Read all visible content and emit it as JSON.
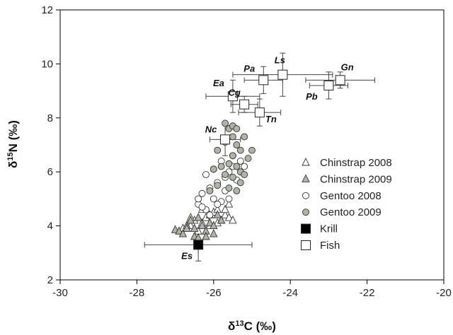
{
  "chart_data": {
    "type": "scatter",
    "xlabel": {
      "prefix": "δ",
      "sup": "13",
      "suffix": "C (‰)"
    },
    "ylabel": {
      "prefix": "δ",
      "sup": "15",
      "suffix": "N (‰)"
    },
    "xlim": [
      -30,
      -20
    ],
    "ylim": [
      2,
      12
    ],
    "xticks": [
      -30,
      -28,
      -26,
      -24,
      -22,
      -20
    ],
    "yticks": [
      2,
      4,
      6,
      8,
      10,
      12
    ],
    "grid": false,
    "legend_position": "right",
    "series": [
      {
        "name": "Chinstrap 2008",
        "marker": "triangle",
        "fill": "#ffffff",
        "points": [
          [
            -26.8,
            3.9
          ],
          [
            -26.6,
            4.0
          ],
          [
            -26.5,
            4.2
          ],
          [
            -26.4,
            3.8
          ],
          [
            -26.3,
            4.1
          ],
          [
            -26.2,
            4.3
          ],
          [
            -26.1,
            4.0
          ],
          [
            -26.0,
            4.5
          ],
          [
            -25.9,
            4.1
          ],
          [
            -25.8,
            4.2
          ],
          [
            -25.7,
            4.4
          ],
          [
            -25.6,
            4.3
          ],
          [
            -25.5,
            4.2
          ],
          [
            -25.7,
            4.6
          ],
          [
            -25.6,
            4.8
          ],
          [
            -26.1,
            4.4
          ],
          [
            -26.3,
            4.6
          ],
          [
            -25.9,
            4.6
          ],
          [
            -26.6,
            4.3
          ]
        ]
      },
      {
        "name": "Chinstrap 2009",
        "marker": "triangle",
        "fill": "#aeb5a4",
        "points": [
          [
            -27.0,
            3.85
          ],
          [
            -26.9,
            3.8
          ],
          [
            -26.8,
            3.7
          ],
          [
            -26.7,
            4.0
          ],
          [
            -26.7,
            3.9
          ],
          [
            -26.6,
            4.2
          ],
          [
            -26.5,
            3.9
          ],
          [
            -26.4,
            4.3
          ],
          [
            -26.3,
            4.0
          ],
          [
            -26.2,
            3.8
          ],
          [
            -26.1,
            4.1
          ],
          [
            -26.0,
            4.0
          ],
          [
            -25.9,
            4.4
          ],
          [
            -25.8,
            4.2
          ],
          [
            -26.5,
            3.6
          ],
          [
            -26.2,
            3.6
          ],
          [
            -26.0,
            3.7
          ],
          [
            -26.4,
            3.55
          ]
        ]
      },
      {
        "name": "Gentoo 2008",
        "marker": "circle",
        "fill": "#ffffff",
        "points": [
          [
            -26.4,
            4.8
          ],
          [
            -26.3,
            5.2
          ],
          [
            -26.2,
            4.6
          ],
          [
            -26.1,
            5.4
          ],
          [
            -26.0,
            5.0
          ],
          [
            -25.9,
            5.6
          ],
          [
            -25.8,
            4.9
          ],
          [
            -25.7,
            5.8
          ],
          [
            -25.6,
            6.0
          ],
          [
            -25.5,
            6.2
          ],
          [
            -25.4,
            5.7
          ],
          [
            -25.3,
            6.4
          ],
          [
            -25.2,
            6.2
          ],
          [
            -26.0,
            6.1
          ],
          [
            -25.8,
            6.4
          ],
          [
            -26.2,
            5.9
          ],
          [
            -26.4,
            5.0
          ],
          [
            -26.3,
            4.7
          ],
          [
            -25.9,
            4.8
          ],
          [
            -25.7,
            5.3
          ],
          [
            -26.1,
            4.4
          ],
          [
            -25.5,
            6.6
          ],
          [
            -25.6,
            5.0
          ]
        ]
      },
      {
        "name": "Gentoo 2009",
        "marker": "circle",
        "fill": "#aeb5a4",
        "points": [
          [
            -25.7,
            7.8
          ],
          [
            -25.6,
            7.6
          ],
          [
            -25.5,
            7.3
          ],
          [
            -25.4,
            7.0
          ],
          [
            -25.3,
            6.8
          ],
          [
            -25.5,
            6.6
          ],
          [
            -25.6,
            6.3
          ],
          [
            -25.4,
            6.2
          ],
          [
            -25.5,
            5.8
          ],
          [
            -25.3,
            5.6
          ],
          [
            -25.7,
            5.9
          ],
          [
            -25.9,
            5.5
          ],
          [
            -26.0,
            6.1
          ],
          [
            -25.6,
            5.4
          ],
          [
            -25.4,
            5.3
          ],
          [
            -25.2,
            7.3
          ],
          [
            -25.0,
            6.8
          ],
          [
            -25.9,
            6.8
          ],
          [
            -25.5,
            7.7
          ],
          [
            -25.8,
            6.2
          ],
          [
            -25.4,
            7.6
          ],
          [
            -25.1,
            6.5
          ],
          [
            -25.3,
            6.0
          ],
          [
            -26.1,
            5.3
          ],
          [
            -25.7,
            7.1
          ],
          [
            -25.2,
            5.9
          ]
        ]
      }
    ],
    "prey": {
      "krill": {
        "name": "Krill",
        "marker": "square",
        "fill": "#000000",
        "points": [
          {
            "label": "Es",
            "x": -26.4,
            "y": 3.3,
            "xerr": 1.4,
            "yerr": 0.6
          }
        ]
      },
      "fish": {
        "name": "Fish",
        "marker": "square",
        "fill": "#ffffff",
        "points": [
          {
            "label": "Nc",
            "x": -25.7,
            "y": 7.2,
            "xerr": 0.4,
            "yerr": 0.6
          },
          {
            "label": "Ea",
            "x": -25.5,
            "y": 8.8,
            "xerr": 0.7,
            "yerr": 0.6
          },
          {
            "label": "Cg",
            "x": -25.2,
            "y": 8.5,
            "xerr": 0.35,
            "yerr": 0.3
          },
          {
            "label": "Tn",
            "x": -24.8,
            "y": 8.2,
            "xerr": 0.55,
            "yerr": 0.5
          },
          {
            "label": "Pa",
            "x": -24.7,
            "y": 9.4,
            "xerr": 0.5,
            "yerr": 0.5
          },
          {
            "label": "Ls",
            "x": -24.2,
            "y": 9.6,
            "xerr": 1.3,
            "yerr": 0.8
          },
          {
            "label": "Pb",
            "x": -23.0,
            "y": 9.2,
            "xerr": 0.5,
            "yerr": 0.5
          },
          {
            "label": "Gn",
            "x": -22.7,
            "y": 9.4,
            "xerr": 0.9,
            "yerr": 0.3
          }
        ]
      }
    },
    "legend": [
      {
        "label": "Chinstrap 2008",
        "marker": "triangle",
        "fill": "#ffffff"
      },
      {
        "label": "Chinstrap 2009",
        "marker": "triangle",
        "fill": "#aeb5a4"
      },
      {
        "label": "Gentoo 2008",
        "marker": "circle",
        "fill": "#ffffff"
      },
      {
        "label": "Gentoo 2009",
        "marker": "circle",
        "fill": "#aeb5a4"
      },
      {
        "label": "Krill",
        "marker": "square",
        "fill": "#000000"
      },
      {
        "label": "Fish",
        "marker": "square",
        "fill": "#ffffff"
      }
    ]
  }
}
